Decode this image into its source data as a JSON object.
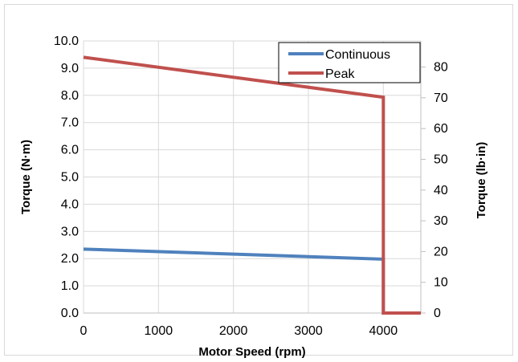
{
  "chart_data": {
    "type": "line",
    "xlabel": "Motor Speed (rpm)",
    "ylabel": "Torque (N·m)",
    "y2label": "Torque (lb·in)",
    "xlim": [
      0,
      4500
    ],
    "ylim": [
      0,
      10
    ],
    "y2lim": [
      0,
      88.5
    ],
    "x_ticks": [
      "0",
      "1000",
      "2000",
      "3000",
      "4000"
    ],
    "y_ticks": [
      "0.0",
      "1.0",
      "2.0",
      "3.0",
      "4.0",
      "5.0",
      "6.0",
      "7.0",
      "8.0",
      "9.0",
      "10.0"
    ],
    "y2_ticks": [
      "0",
      "10",
      "20",
      "30",
      "40",
      "50",
      "60",
      "70",
      "80"
    ],
    "grid": true,
    "legend_position": "top-right",
    "series": [
      {
        "name": "Continuous",
        "color": "#4f81bd",
        "points": [
          [
            0,
            2.35
          ],
          [
            4000,
            1.98
          ],
          [
            4000,
            0
          ],
          [
            4500,
            0
          ]
        ]
      },
      {
        "name": "Peak",
        "color": "#c0504d",
        "points": [
          [
            0,
            9.4
          ],
          [
            4000,
            7.93
          ],
          [
            4000,
            0
          ],
          [
            4500,
            0
          ]
        ]
      }
    ]
  }
}
